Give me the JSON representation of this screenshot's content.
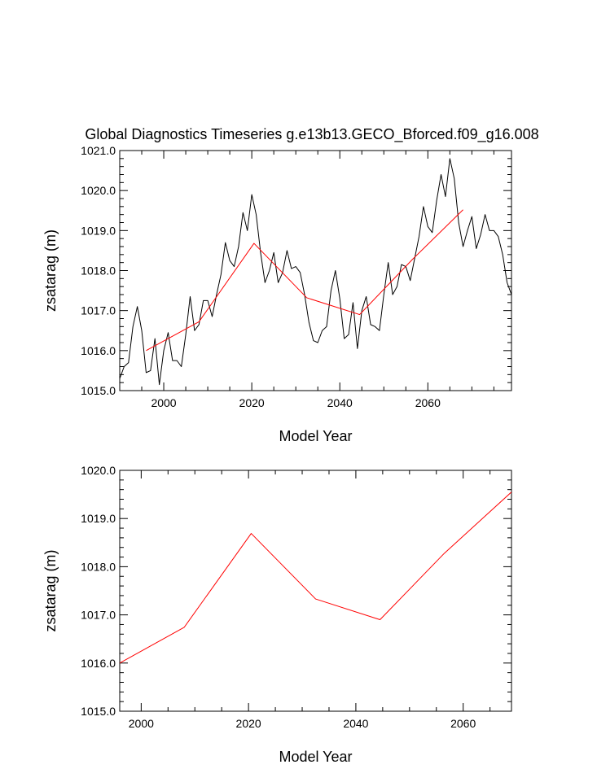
{
  "page_title": "Global Diagnostics Timeseries g.e13b13.GECO_Bforced.f09_g16.008",
  "colors": {
    "annual_line": "#000000",
    "running_mean": "#ff0000",
    "axes": "#000000"
  },
  "chart_data": [
    {
      "type": "line",
      "title": "Global Diagnostics Timeseries g.e13b13.GECO_Bforced.f09_g16.008",
      "xlabel": "Model Year",
      "ylabel": "zsatarag (m)",
      "xlim": [
        1990,
        2079
      ],
      "ylim": [
        1015.0,
        1021.0
      ],
      "xticks": [
        2000,
        2020,
        2040,
        2060
      ],
      "xtick_labels": [
        "2000",
        "2020",
        "2040",
        "2060"
      ],
      "yticks": [
        1015.0,
        1016.0,
        1017.0,
        1018.0,
        1019.0,
        1020.0,
        1021.0
      ],
      "ytick_labels": [
        "1015.0",
        "1016.0",
        "1017.0",
        "1018.0",
        "1019.0",
        "1020.0",
        "1021.0"
      ],
      "grid": false,
      "series": [
        {
          "name": "annual",
          "color": "#000000",
          "x": [
            1990,
            1991,
            1992,
            1993,
            1994,
            1995,
            1996,
            1997,
            1998,
            1999,
            2000,
            2001,
            2002,
            2003,
            2004,
            2005,
            2006,
            2007,
            2008,
            2009,
            2010,
            2011,
            2012,
            2013,
            2014,
            2015,
            2016,
            2017,
            2018,
            2019,
            2020,
            2021,
            2022,
            2023,
            2024,
            2025,
            2026,
            2027,
            2028,
            2029,
            2030,
            2031,
            2032,
            2033,
            2034,
            2035,
            2036,
            2037,
            2038,
            2039,
            2040,
            2041,
            2042,
            2043,
            2044,
            2045,
            2046,
            2047,
            2048,
            2049,
            2050,
            2051,
            2052,
            2053,
            2054,
            2055,
            2056,
            2057,
            2058,
            2059,
            2060,
            2061,
            2062,
            2063,
            2064,
            2065,
            2066,
            2067,
            2068,
            2069,
            2070,
            2071,
            2072,
            2073,
            2074,
            2075,
            2076,
            2077,
            2078,
            2079
          ],
          "values": [
            1015.3,
            1015.6,
            1015.7,
            1016.6,
            1017.1,
            1016.5,
            1015.45,
            1015.5,
            1016.3,
            1015.15,
            1016.0,
            1016.45,
            1015.75,
            1015.75,
            1015.6,
            1016.4,
            1017.35,
            1016.5,
            1016.65,
            1017.25,
            1017.25,
            1016.85,
            1017.4,
            1017.9,
            1018.7,
            1018.25,
            1018.1,
            1018.6,
            1019.45,
            1019.0,
            1019.9,
            1019.4,
            1018.45,
            1017.7,
            1018.0,
            1018.45,
            1017.7,
            1017.95,
            1018.5,
            1018.05,
            1018.1,
            1017.95,
            1017.4,
            1016.7,
            1016.25,
            1016.2,
            1016.5,
            1016.6,
            1017.5,
            1018.0,
            1017.3,
            1016.3,
            1016.4,
            1017.2,
            1016.05,
            1017.0,
            1017.35,
            1016.65,
            1016.6,
            1016.5,
            1017.4,
            1018.2,
            1017.4,
            1017.6,
            1018.15,
            1018.1,
            1017.75,
            1018.3,
            1018.85,
            1019.6,
            1019.1,
            1018.95,
            1019.75,
            1020.4,
            1019.85,
            1020.8,
            1020.3,
            1019.2,
            1018.6,
            1019.0,
            1019.35,
            1018.55,
            1018.9,
            1019.4,
            1019.0,
            1019.0,
            1018.85,
            1018.4,
            1017.7,
            1017.4
          ]
        },
        {
          "name": "running mean",
          "color": "#ff0000",
          "x": [
            1996,
            2008,
            2020.5,
            2032.5,
            2044.5,
            2056.5,
            2068
          ],
          "values": [
            1016.0,
            1016.72,
            1018.68,
            1017.32,
            1016.9,
            1018.28,
            1019.52
          ]
        }
      ]
    },
    {
      "type": "line",
      "title": "",
      "xlabel": "Model Year",
      "ylabel": "zsatarag (m)",
      "xlim": [
        1996,
        2069
      ],
      "ylim": [
        1015.0,
        1020.0
      ],
      "xticks": [
        2000,
        2020,
        2040,
        2060
      ],
      "xtick_labels": [
        "2000",
        "2020",
        "2040",
        "2060"
      ],
      "yticks": [
        1015.0,
        1016.0,
        1017.0,
        1018.0,
        1019.0,
        1020.0
      ],
      "ytick_labels": [
        "1015.0",
        "1016.0",
        "1017.0",
        "1018.0",
        "1019.0",
        "1020.0"
      ],
      "grid": false,
      "series": [
        {
          "name": "running mean",
          "color": "#ff0000",
          "x": [
            1996,
            2008,
            2020.5,
            2032.5,
            2044.5,
            2056.5,
            2069
          ],
          "values": [
            1016.0,
            1016.74,
            1018.69,
            1017.33,
            1016.9,
            1018.28,
            1019.55
          ]
        }
      ]
    }
  ]
}
